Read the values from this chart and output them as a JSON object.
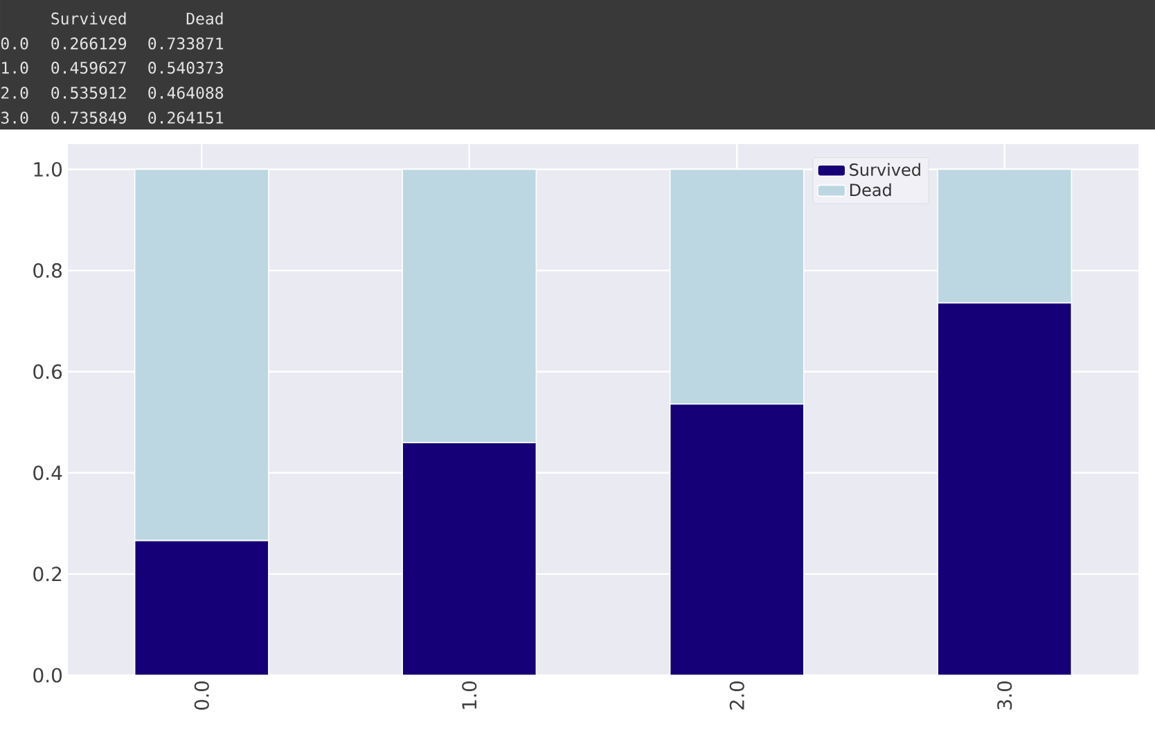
{
  "chart_data": {
    "type": "bar",
    "stacked": true,
    "categories": [
      "0.0",
      "1.0",
      "2.0",
      "3.0"
    ],
    "series": [
      {
        "name": "Survived",
        "color": "#150077",
        "values": [
          0.266129,
          0.459627,
          0.535912,
          0.735849
        ]
      },
      {
        "name": "Dead",
        "color": "#bcd7e2",
        "values": [
          0.733871,
          0.540373,
          0.464088,
          0.264151
        ]
      }
    ],
    "annotations": [
      "0.266129",
      "0.733871",
      "0.459627",
      "0.540373",
      "0.535912",
      "0.464088",
      "0.735849",
      "0.264151"
    ],
    "ylim": [
      0,
      1.05
    ],
    "yticks": [
      {
        "value": 0,
        "label": "0.0"
      },
      {
        "value": 0.2,
        "label": "0.2"
      },
      {
        "value": 0.4,
        "label": "0.4"
      },
      {
        "value": 0.6,
        "label": "0.6"
      },
      {
        "value": 0.8,
        "label": "0.8"
      },
      {
        "value": 1.0,
        "label": "1.0"
      }
    ],
    "grid": true,
    "legend": "top right"
  }
}
